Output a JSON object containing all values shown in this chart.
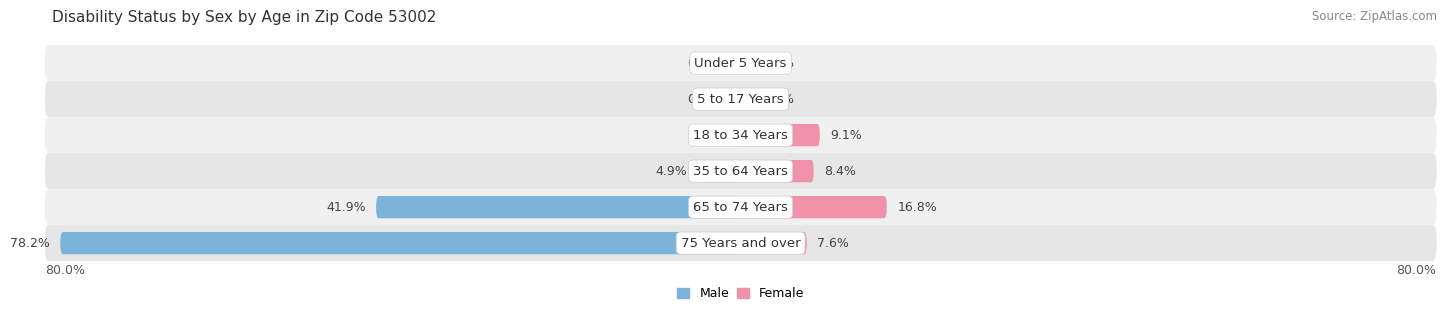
{
  "title": "Disability Status by Sex by Age in Zip Code 53002",
  "source": "Source: ZipAtlas.com",
  "categories": [
    "Under 5 Years",
    "5 to 17 Years",
    "18 to 34 Years",
    "35 to 64 Years",
    "65 to 74 Years",
    "75 Years and over"
  ],
  "male_values": [
    0.0,
    0.0,
    0.0,
    4.9,
    41.9,
    78.2
  ],
  "female_values": [
    0.0,
    0.0,
    9.1,
    8.4,
    16.8,
    7.6
  ],
  "male_color": "#7bb3d9",
  "female_color": "#f093aa",
  "row_bg_even": "#f0f0f0",
  "row_bg_odd": "#e6e6e6",
  "xlim": 80.0,
  "label_fontsize": 9,
  "title_fontsize": 11,
  "source_fontsize": 8.5,
  "cat_fontsize": 9.5,
  "val_fontsize": 9
}
